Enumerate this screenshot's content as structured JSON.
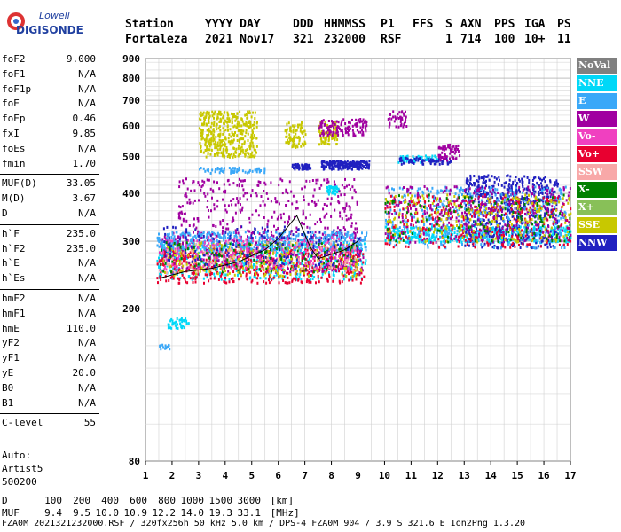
{
  "logo": {
    "line1": "Lowell",
    "line2": "DIGISONDE"
  },
  "header": {
    "columns": [
      "Station",
      "YYYY DAY",
      "DDD",
      "HHMMSS",
      "P1",
      "FFS",
      "S",
      "AXN",
      "PPS",
      "IGA",
      "PS"
    ],
    "values": [
      "Fortaleza",
      "2021 Nov17",
      "321",
      "232000",
      "RSF",
      "",
      "1",
      "714",
      "100",
      "10+",
      "11"
    ]
  },
  "params": {
    "group1": [
      {
        "label": "foF2",
        "value": "9.000"
      },
      {
        "label": "foF1",
        "value": "N/A"
      },
      {
        "label": "foF1p",
        "value": "N/A"
      },
      {
        "label": "foE",
        "value": "N/A"
      },
      {
        "label": "foEp",
        "value": "0.46"
      },
      {
        "label": "fxI",
        "value": "9.85"
      },
      {
        "label": "foEs",
        "value": "N/A"
      },
      {
        "label": "fmin",
        "value": "1.70"
      }
    ],
    "group2": [
      {
        "label": "MUF(D)",
        "value": "33.05"
      },
      {
        "label": "M(D)",
        "value": "3.67"
      },
      {
        "label": "D",
        "value": "N/A"
      }
    ],
    "group3": [
      {
        "label": "h`F",
        "value": "235.0"
      },
      {
        "label": "h`F2",
        "value": "235.0"
      },
      {
        "label": "h`E",
        "value": "N/A"
      },
      {
        "label": "h`Es",
        "value": "N/A"
      }
    ],
    "group4": [
      {
        "label": "hmF2",
        "value": "N/A"
      },
      {
        "label": "hmF1",
        "value": "N/A"
      },
      {
        "label": "hmE",
        "value": "110.0"
      },
      {
        "label": "yF2",
        "value": "N/A"
      },
      {
        "label": "yF1",
        "value": "N/A"
      },
      {
        "label": "yE",
        "value": "20.0"
      },
      {
        "label": "B0",
        "value": "N/A"
      },
      {
        "label": "B1",
        "value": "N/A"
      }
    ],
    "group5": [
      {
        "label": "C-level",
        "value": "55"
      }
    ]
  },
  "auto": {
    "line1": "Auto:",
    "line2": "Artist5",
    "line3": "500200"
  },
  "legend": [
    {
      "name": "NoVal",
      "color": "#808080"
    },
    {
      "name": "NNE",
      "color": "#00d8f8"
    },
    {
      "name": "E",
      "color": "#3aa8f8"
    },
    {
      "name": "W",
      "color": "#a000a0"
    },
    {
      "name": "Vo-",
      "color": "#f040c0"
    },
    {
      "name": "Vo+",
      "color": "#e80030"
    },
    {
      "name": "SSW",
      "color": "#f8a8a8"
    },
    {
      "name": "X-",
      "color": "#008000"
    },
    {
      "name": "X+",
      "color": "#88c058"
    },
    {
      "name": "SSE",
      "color": "#c8c800"
    },
    {
      "name": "NNW",
      "color": "#2020c0"
    }
  ],
  "bottom": {
    "d_label": "D",
    "d_values": [
      "100",
      "200",
      "400",
      "600",
      "800",
      "1000",
      "1500",
      "3000"
    ],
    "d_unit": "[km]",
    "muf_label": "MUF",
    "muf_values": [
      "9.4",
      "9.5",
      "10.0",
      "10.9",
      "12.2",
      "14.0",
      "19.3",
      "33.1"
    ],
    "muf_unit": "[MHz]"
  },
  "footer": "FZA0M_2021321232000.RSF / 320fx256h 50 kHz 5.0 km / DPS-4 FZA0M 904 / 3.9 S 321.6 E   Ion2Png 1.3.20",
  "chart_data": {
    "type": "scatter",
    "title": "",
    "xlabel": "",
    "ylabel": "",
    "xlim": [
      1,
      17
    ],
    "ylim": [
      80,
      900
    ],
    "x_ticks": [
      1,
      2,
      3,
      4,
      5,
      6,
      7,
      8,
      9,
      10,
      11,
      12,
      13,
      14,
      15,
      16,
      17
    ],
    "y_ticks": [
      80,
      200,
      300,
      400,
      500,
      600,
      700,
      800,
      900
    ],
    "y_scale": "log",
    "grid": true,
    "legend_position": "right",
    "trace": [
      {
        "x": 1.5,
        "y": 240
      },
      {
        "x": 2.5,
        "y": 250
      },
      {
        "x": 3.5,
        "y": 255
      },
      {
        "x": 4.5,
        "y": 265
      },
      {
        "x": 5.0,
        "y": 275
      },
      {
        "x": 5.5,
        "y": 285
      },
      {
        "x": 6.0,
        "y": 305
      },
      {
        "x": 6.7,
        "y": 350
      },
      {
        "x": 7.2,
        "y": 290
      },
      {
        "x": 7.5,
        "y": 270
      },
      {
        "x": 8.5,
        "y": 285
      },
      {
        "x": 9.0,
        "y": 300
      }
    ],
    "clusters": [
      {
        "series": "NNE",
        "x": [
          1.4,
          9.3
        ],
        "y": [
          240,
          300
        ],
        "n": 500
      },
      {
        "series": "Vo+",
        "x": [
          1.4,
          9.2
        ],
        "y": [
          235,
          290
        ],
        "n": 500
      },
      {
        "series": "W",
        "x": [
          1.5,
          9.2
        ],
        "y": [
          250,
          320
        ],
        "n": 350
      },
      {
        "series": "SSE",
        "x": [
          1.6,
          9.1
        ],
        "y": [
          245,
          300
        ],
        "n": 300
      },
      {
        "series": "E",
        "x": [
          1.4,
          9.3
        ],
        "y": [
          285,
          320
        ],
        "n": 450
      },
      {
        "series": "Vo-",
        "x": [
          1.5,
          9.0
        ],
        "y": [
          255,
          310
        ],
        "n": 250
      },
      {
        "series": "X-",
        "x": [
          1.5,
          9.0
        ],
        "y": [
          250,
          300
        ],
        "n": 120
      },
      {
        "series": "NNW",
        "x": [
          1.6,
          9.1
        ],
        "y": [
          260,
          330
        ],
        "n": 150
      },
      {
        "series": "SSW",
        "x": [
          1.5,
          9.0
        ],
        "y": [
          250,
          300
        ],
        "n": 100
      },
      {
        "series": "W",
        "x": [
          2.2,
          9.0
        ],
        "y": [
          320,
          440
        ],
        "n": 300
      },
      {
        "series": "SSE",
        "x": [
          3.0,
          5.2
        ],
        "y": [
          500,
          660
        ],
        "n": 400
      },
      {
        "series": "SSE",
        "x": [
          6.2,
          7.0
        ],
        "y": [
          530,
          620
        ],
        "n": 80
      },
      {
        "series": "SSE",
        "x": [
          7.5,
          8.2
        ],
        "y": [
          540,
          620
        ],
        "n": 80
      },
      {
        "series": "NNW",
        "x": [
          6.5,
          7.2
        ],
        "y": [
          465,
          480
        ],
        "n": 60
      },
      {
        "series": "NNW",
        "x": [
          7.6,
          9.4
        ],
        "y": [
          465,
          490
        ],
        "n": 200
      },
      {
        "series": "W",
        "x": [
          7.5,
          9.3
        ],
        "y": [
          570,
          630
        ],
        "n": 120
      },
      {
        "series": "NNE",
        "x": [
          7.8,
          8.3
        ],
        "y": [
          400,
          420
        ],
        "n": 40
      },
      {
        "series": "E",
        "x": [
          3.0,
          5.5
        ],
        "y": [
          455,
          470
        ],
        "n": 60
      },
      {
        "series": "NNE",
        "x": [
          1.8,
          2.6
        ],
        "y": [
          178,
          190
        ],
        "n": 40
      },
      {
        "series": "E",
        "x": [
          1.5,
          1.9
        ],
        "y": [
          158,
          162
        ],
        "n": 15
      },
      {
        "series": "NNE",
        "x": [
          10.0,
          17.0
        ],
        "y": [
          300,
          330
        ],
        "n": 400
      },
      {
        "series": "NNW",
        "x": [
          13.0,
          16.5
        ],
        "y": [
          290,
          450
        ],
        "n": 600
      },
      {
        "series": "E",
        "x": [
          10.0,
          16.8
        ],
        "y": [
          290,
          420
        ],
        "n": 450
      },
      {
        "series": "Vo+",
        "x": [
          10.0,
          17.0
        ],
        "y": [
          290,
          400
        ],
        "n": 300
      },
      {
        "series": "W",
        "x": [
          10.0,
          17.0
        ],
        "y": [
          300,
          420
        ],
        "n": 300
      },
      {
        "series": "SSE",
        "x": [
          10.0,
          17.0
        ],
        "y": [
          300,
          400
        ],
        "n": 250
      },
      {
        "series": "X-",
        "x": [
          10.0,
          17.0
        ],
        "y": [
          300,
          400
        ],
        "n": 120
      },
      {
        "series": "NNE",
        "x": [
          10.5,
          12.0
        ],
        "y": [
          485,
          505
        ],
        "n": 60
      },
      {
        "series": "NNW",
        "x": [
          10.5,
          12.5
        ],
        "y": [
          480,
          500
        ],
        "n": 60
      },
      {
        "series": "W",
        "x": [
          10.1,
          10.8
        ],
        "y": [
          600,
          660
        ],
        "n": 40
      },
      {
        "series": "W",
        "x": [
          12.0,
          12.8
        ],
        "y": [
          490,
          540
        ],
        "n": 60
      }
    ]
  }
}
